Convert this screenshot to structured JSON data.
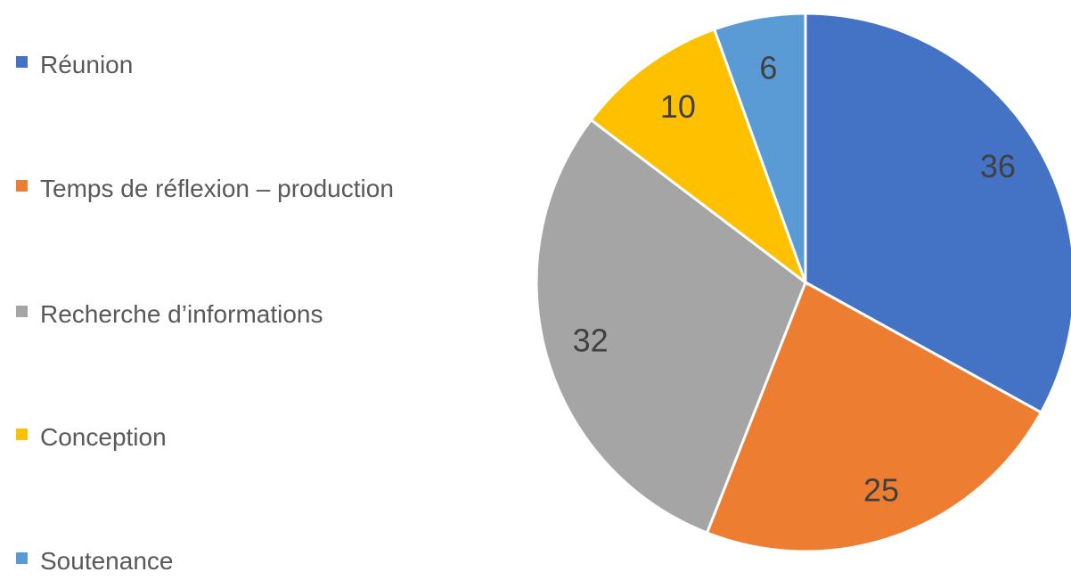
{
  "chart_data": {
    "type": "pie",
    "categories": [
      "Réunion",
      "Temps de réflexion – production",
      "Recherche d’informations",
      "Conception",
      "Soutenance"
    ],
    "values": [
      36,
      25,
      32,
      10,
      6
    ],
    "colors": [
      "#4472c4",
      "#ed7d31",
      "#a5a5a5",
      "#ffc000",
      "#5b9bd5"
    ],
    "legend": "left"
  }
}
